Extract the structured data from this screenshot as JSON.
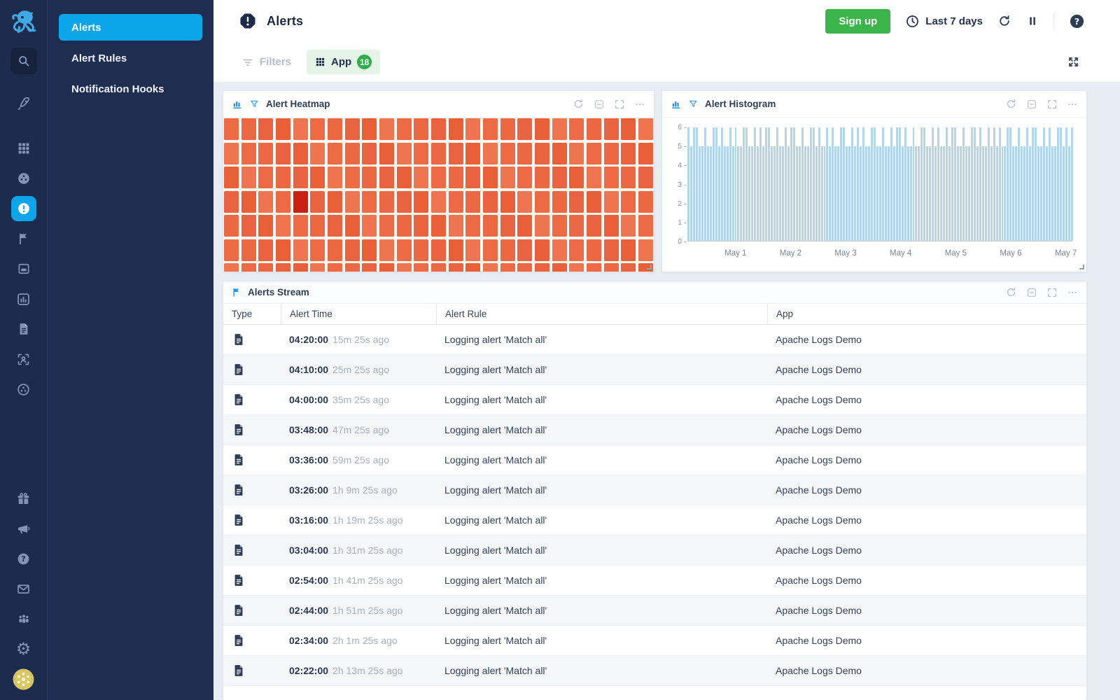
{
  "colors": {
    "accent_blue": "#0ba6e9",
    "signup_green": "#3bb54a",
    "heatmap_orange": "#ed6a45",
    "heatmap_dark_red": "#c9200f",
    "histogram_bar_blue": "#b4d6eb",
    "sidebar_navy": "#1d2b4c"
  },
  "sidebar": {
    "rail_icons": [
      "octopus-logo",
      "search",
      "rocket",
      "apps-grid",
      "donut-infra",
      "alerts",
      "flag",
      "inbox",
      "chart-box",
      "logs",
      "user-scan",
      "integrations"
    ],
    "rail_bottom_icons": [
      "gift",
      "megaphone",
      "help",
      "mail",
      "team",
      "settings",
      "avatar"
    ],
    "menu": {
      "items": [
        "Alerts",
        "Alert Rules",
        "Notification Hooks"
      ],
      "active_index": 0
    }
  },
  "header": {
    "title": "Alerts",
    "signup_label": "Sign up",
    "time_range": "Last 7 days"
  },
  "toolbar": {
    "filters_label": "Filters",
    "app_label": "App",
    "app_count": "18"
  },
  "panels": {
    "heatmap": {
      "title": "Alert Heatmap"
    },
    "histogram": {
      "title": "Alert Histogram"
    },
    "stream": {
      "title": "Alerts Stream",
      "columns": [
        "Type",
        "Alert Time",
        "Alert Rule",
        "App"
      ],
      "rows": [
        {
          "time": "04:20:00",
          "ago": "15m 25s ago",
          "rule": "Logging alert 'Match all'",
          "app": "Apache Logs Demo"
        },
        {
          "time": "04:10:00",
          "ago": "25m 25s ago",
          "rule": "Logging alert 'Match all'",
          "app": "Apache Logs Demo"
        },
        {
          "time": "04:00:00",
          "ago": "35m 25s ago",
          "rule": "Logging alert 'Match all'",
          "app": "Apache Logs Demo"
        },
        {
          "time": "03:48:00",
          "ago": "47m 25s ago",
          "rule": "Logging alert 'Match all'",
          "app": "Apache Logs Demo"
        },
        {
          "time": "03:36:00",
          "ago": "59m 25s ago",
          "rule": "Logging alert 'Match all'",
          "app": "Apache Logs Demo"
        },
        {
          "time": "03:26:00",
          "ago": "1h 9m 25s ago",
          "rule": "Logging alert 'Match all'",
          "app": "Apache Logs Demo"
        },
        {
          "time": "03:16:00",
          "ago": "1h 19m 25s ago",
          "rule": "Logging alert 'Match all'",
          "app": "Apache Logs Demo"
        },
        {
          "time": "03:04:00",
          "ago": "1h 31m 25s ago",
          "rule": "Logging alert 'Match all'",
          "app": "Apache Logs Demo"
        },
        {
          "time": "02:54:00",
          "ago": "1h 41m 25s ago",
          "rule": "Logging alert 'Match all'",
          "app": "Apache Logs Demo"
        },
        {
          "time": "02:44:00",
          "ago": "1h 51m 25s ago",
          "rule": "Logging alert 'Match all'",
          "app": "Apache Logs Demo"
        },
        {
          "time": "02:34:00",
          "ago": "2h 1m 25s ago",
          "rule": "Logging alert 'Match all'",
          "app": "Apache Logs Demo"
        },
        {
          "time": "02:22:00",
          "ago": "2h 13m 25s ago",
          "rule": "Logging alert 'Match all'",
          "app": "Apache Logs Demo"
        }
      ]
    }
  },
  "chart_data": [
    {
      "type": "heatmap",
      "title": "Alert Heatmap",
      "rows": 7,
      "cols": 25,
      "base_palette": [
        "#ed6a45",
        "#ea6340",
        "#ef7450",
        "#ec6843",
        "#e96038"
      ],
      "highlight_cell": {
        "row": 3,
        "col": 4,
        "color": "#c9200f"
      }
    },
    {
      "type": "bar",
      "title": "Alert Histogram",
      "ylabel": "",
      "ylim": [
        0,
        6
      ],
      "yticks": [
        0,
        1,
        2,
        3,
        4,
        5,
        6
      ],
      "x_ticks": [
        "May 1",
        "May 2",
        "May 3",
        "May 4",
        "May 5",
        "May 6",
        "May 7"
      ],
      "x_tick_first_pct": 12.5,
      "x_tick_step_pct": 14.3,
      "values": [
        6,
        5,
        6,
        6,
        5,
        5,
        6,
        5,
        5,
        6,
        6,
        5,
        6,
        5,
        5,
        6,
        5,
        6,
        5,
        5,
        6,
        6,
        5,
        5,
        6,
        5,
        6,
        5,
        6,
        6,
        5,
        5,
        6,
        5,
        5,
        6,
        5,
        6,
        6,
        5,
        5,
        6,
        5,
        5,
        6,
        6,
        5,
        6,
        5,
        5,
        6,
        5,
        6,
        5,
        5,
        6,
        6,
        5,
        5,
        6,
        5,
        6,
        5,
        6,
        5,
        5,
        6,
        6,
        5,
        5,
        6,
        5,
        5,
        6,
        5,
        6,
        6,
        5,
        6,
        5,
        5,
        6,
        5,
        5,
        6,
        6,
        5,
        5,
        6,
        5,
        6,
        5,
        5,
        6,
        5,
        6,
        6,
        5,
        5,
        6,
        5,
        5,
        6,
        6,
        5,
        6,
        5,
        5,
        6,
        5,
        6,
        5,
        6,
        5,
        5,
        6,
        6,
        5,
        5,
        6,
        5,
        5,
        6,
        5,
        6,
        6,
        5,
        5,
        6,
        5,
        6,
        5,
        5,
        6,
        6,
        5,
        6,
        5,
        6
      ]
    }
  ]
}
